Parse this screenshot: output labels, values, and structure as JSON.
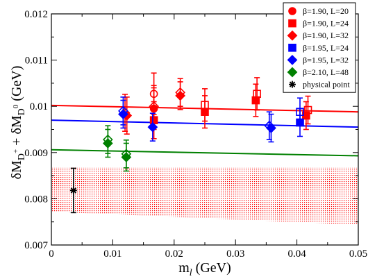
{
  "chart_data": {
    "type": "scatter",
    "title": "",
    "xlabel": "m_l (GeV)",
    "ylabel": "δM_D+ + δM_D0 (GeV)",
    "xlim": [
      0,
      0.05
    ],
    "ylim": [
      0.007,
      0.012
    ],
    "x_ticks": [
      "0",
      "0.01",
      "0.02",
      "0.03",
      "0.04",
      "0.05"
    ],
    "y_ticks": [
      "0.007",
      "0.008",
      "0.009",
      "0.01",
      "0.011",
      "0.012"
    ],
    "grid": false,
    "legend_position": "top-right",
    "legend": [
      {
        "label": "β=1.90, L=20",
        "color": "#ff0000",
        "marker": "circle"
      },
      {
        "label": "β=1.90, L=24",
        "color": "#ff0000",
        "marker": "square"
      },
      {
        "label": "β=1.90, L=32",
        "color": "#ff0000",
        "marker": "diamond"
      },
      {
        "label": "β=1.95, L=24",
        "color": "#0000ff",
        "marker": "square"
      },
      {
        "label": "β=1.95, L=32",
        "color": "#0000ff",
        "marker": "diamond"
      },
      {
        "label": "β=2.10, L=48",
        "color": "#008000",
        "marker": "diamond"
      },
      {
        "label": "physical point",
        "color": "#000000",
        "marker": "star"
      }
    ],
    "points": [
      {
        "x": 0.0167,
        "y": 0.01027,
        "err": 0.00045,
        "color": "#ff0000",
        "marker": "circle",
        "filled": false
      },
      {
        "x": 0.0167,
        "y": 0.00995,
        "err": 0.00045,
        "color": "#ff0000",
        "marker": "circle",
        "filled": true
      },
      {
        "x": 0.0123,
        "y": 0.0098,
        "err": 0.0004,
        "color": "#ff0000",
        "marker": "diamond",
        "filled": true
      },
      {
        "x": 0.012,
        "y": 0.00986,
        "err": 0.0004,
        "color": "#ff0000",
        "marker": "diamond",
        "filled": false
      },
      {
        "x": 0.0167,
        "y": 0.01,
        "err": 0.00045,
        "color": "#ff0000",
        "marker": "diamond",
        "filled": false
      },
      {
        "x": 0.0167,
        "y": 0.0097,
        "err": 0.0004,
        "color": "#ff0000",
        "marker": "square",
        "filled": true
      },
      {
        "x": 0.021,
        "y": 0.0103,
        "err": 0.0003,
        "color": "#ff0000",
        "marker": "diamond",
        "filled": false
      },
      {
        "x": 0.021,
        "y": 0.01023,
        "err": 0.0003,
        "color": "#ff0000",
        "marker": "diamond",
        "filled": true
      },
      {
        "x": 0.025,
        "y": 0.01003,
        "err": 0.00035,
        "color": "#ff0000",
        "marker": "square",
        "filled": false
      },
      {
        "x": 0.025,
        "y": 0.00988,
        "err": 0.00035,
        "color": "#ff0000",
        "marker": "square",
        "filled": true
      },
      {
        "x": 0.0335,
        "y": 0.01027,
        "err": 0.00035,
        "color": "#ff0000",
        "marker": "square",
        "filled": false
      },
      {
        "x": 0.0333,
        "y": 0.01013,
        "err": 0.00035,
        "color": "#ff0000",
        "marker": "square",
        "filled": true
      },
      {
        "x": 0.0418,
        "y": 0.00992,
        "err": 0.0003,
        "color": "#ff0000",
        "marker": "square",
        "filled": false
      },
      {
        "x": 0.0415,
        "y": 0.0098,
        "err": 0.0003,
        "color": "#ff0000",
        "marker": "square",
        "filled": true
      },
      {
        "x": 0.0117,
        "y": 0.0099,
        "err": 0.0003,
        "color": "#0000ff",
        "marker": "diamond",
        "filled": false
      },
      {
        "x": 0.0117,
        "y": 0.00983,
        "err": 0.0003,
        "color": "#0000ff",
        "marker": "diamond",
        "filled": true
      },
      {
        "x": 0.0165,
        "y": 0.00955,
        "err": 0.0003,
        "color": "#0000ff",
        "marker": "diamond",
        "filled": true
      },
      {
        "x": 0.0355,
        "y": 0.00958,
        "err": 0.0003,
        "color": "#0000ff",
        "marker": "diamond",
        "filled": false
      },
      {
        "x": 0.0358,
        "y": 0.00953,
        "err": 0.0003,
        "color": "#0000ff",
        "marker": "diamond",
        "filled": true
      },
      {
        "x": 0.0405,
        "y": 0.00988,
        "err": 0.0003,
        "color": "#0000ff",
        "marker": "square",
        "filled": false
      },
      {
        "x": 0.0405,
        "y": 0.00965,
        "err": 0.0003,
        "color": "#0000ff",
        "marker": "square",
        "filled": true
      },
      {
        "x": 0.0092,
        "y": 0.00928,
        "err": 0.0003,
        "color": "#008000",
        "marker": "diamond",
        "filled": false
      },
      {
        "x": 0.0092,
        "y": 0.0092,
        "err": 0.0003,
        "color": "#008000",
        "marker": "diamond",
        "filled": true
      },
      {
        "x": 0.0122,
        "y": 0.00897,
        "err": 0.0003,
        "color": "#008000",
        "marker": "diamond",
        "filled": false
      },
      {
        "x": 0.0122,
        "y": 0.0089,
        "err": 0.0003,
        "color": "#008000",
        "marker": "diamond",
        "filled": true
      },
      {
        "x": 0.0036,
        "y": 0.00818,
        "err": 0.00048,
        "color": "#000000",
        "marker": "star",
        "filled": true
      }
    ],
    "fit_lines": [
      {
        "color": "#ff0000",
        "x": [
          0,
          0.05
        ],
        "y": [
          0.01002,
          0.00988
        ]
      },
      {
        "color": "#0000ff",
        "x": [
          0,
          0.05
        ],
        "y": [
          0.0097,
          0.00955
        ]
      },
      {
        "color": "#008000",
        "x": [
          0,
          0.05
        ],
        "y": [
          0.00906,
          0.00893
        ]
      }
    ],
    "error_band": {
      "color": "#ff0000",
      "pattern": "dotted",
      "x": [
        0,
        0.05
      ],
      "upper": [
        0.00868,
        0.00868
      ],
      "lower": [
        0.00772,
        0.00744
      ]
    }
  }
}
